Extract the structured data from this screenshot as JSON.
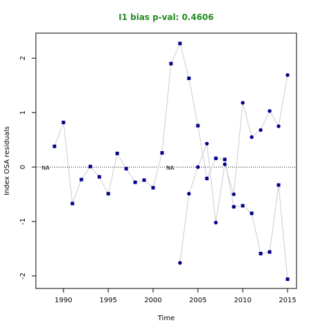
{
  "chart_data": {
    "type": "line",
    "title": "I1 bias p-val: 0.4606",
    "title_color": "#228b22",
    "xlabel": "Time",
    "ylabel": "Index OSA residuals",
    "xlim": [
      1986.92,
      2016
    ],
    "xticks": [
      1990,
      1995,
      2000,
      2005,
      2010,
      2015
    ],
    "ylim": [
      -2.23,
      2.46
    ],
    "yticks": [
      -2,
      -1,
      0,
      1,
      2
    ],
    "line_color": "#cccccc",
    "zero_line": true,
    "annotations": [
      {
        "text": "NA",
        "x": 1988,
        "y": 0
      },
      {
        "text": "NA",
        "x": 2001.9,
        "y": 0
      }
    ],
    "series": [
      {
        "color": "#00008b",
        "marker": "square",
        "x": [
          1989,
          1990,
          1991,
          1992,
          1993,
          1994,
          1995,
          1996,
          1997,
          1998,
          1999,
          2000,
          2001,
          2002,
          2003,
          2004,
          2005,
          2006,
          2007,
          2008,
          2009,
          2010,
          2011,
          2012,
          2013,
          2014,
          2015
        ],
        "values": [
          0.38,
          0.82,
          -0.67,
          -0.23,
          0.01,
          -0.18,
          -0.49,
          0.25,
          -0.03,
          -0.28,
          -0.24,
          -0.38,
          0.26,
          1.9,
          2.27,
          1.63,
          0.76,
          -0.21,
          0.16,
          0.14,
          -0.73,
          -0.71,
          -0.85,
          -1.59,
          -1.56,
          -0.33,
          -2.06
        ]
      },
      {
        "color": "#00008b",
        "marker": "circle",
        "x": [
          2003,
          2004,
          2005,
          2006,
          2007,
          2008,
          2009,
          2010,
          2011,
          2012,
          2013,
          2014,
          2015
        ],
        "values": [
          -1.76,
          -0.49,
          0.0,
          0.43,
          -1.02,
          0.05,
          -0.5,
          1.18,
          0.55,
          0.68,
          1.03,
          0.75,
          1.69
        ]
      }
    ]
  }
}
